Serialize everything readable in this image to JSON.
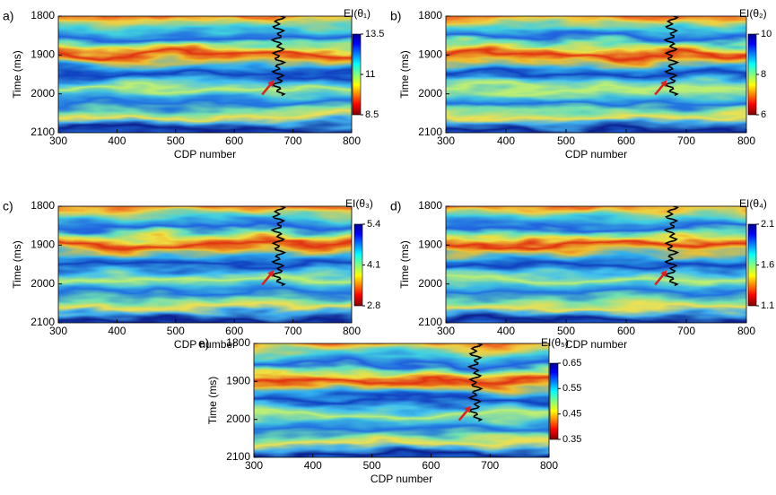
{
  "chart_data": [
    {
      "type": "heatmap",
      "panel_label": "a)",
      "xlabel": "CDP number",
      "ylabel": "Time (ms)",
      "xlim": [
        300,
        800
      ],
      "xticks": [
        300,
        400,
        500,
        600,
        700,
        800
      ],
      "ylim": [
        1800,
        2100
      ],
      "yticks": [
        1800,
        1900,
        2000,
        2100
      ],
      "y_reversed": true,
      "colorbar_label": "EI(θ₁)",
      "clim": [
        8.5,
        13.5
      ],
      "cticks": [
        8.5,
        11,
        13.5
      ],
      "colormap": "jet-reversed"
    },
    {
      "type": "heatmap",
      "panel_label": "b)",
      "xlabel": "CDP number",
      "ylabel": "Time (ms)",
      "xlim": [
        300,
        800
      ],
      "xticks": [
        300,
        400,
        500,
        600,
        700,
        800
      ],
      "ylim": [
        1800,
        2100
      ],
      "yticks": [
        1800,
        1900,
        2000,
        2100
      ],
      "y_reversed": true,
      "colorbar_label": "EI(θ₂)",
      "clim": [
        6,
        10
      ],
      "cticks": [
        6,
        8,
        10
      ],
      "colormap": "jet-reversed"
    },
    {
      "type": "heatmap",
      "panel_label": "c)",
      "xlabel": "CDP number",
      "ylabel": "Time (ms)",
      "xlim": [
        300,
        800
      ],
      "xticks": [
        300,
        400,
        500,
        600,
        700,
        800
      ],
      "ylim": [
        1800,
        2100
      ],
      "yticks": [
        1800,
        1900,
        2000,
        2100
      ],
      "y_reversed": true,
      "colorbar_label": "EI(θ₃)",
      "clim": [
        2.8,
        5.4
      ],
      "cticks": [
        2.8,
        4.1,
        5.4
      ],
      "colormap": "jet-reversed"
    },
    {
      "type": "heatmap",
      "panel_label": "d)",
      "xlabel": "CDP number",
      "ylabel": "Time (ms)",
      "xlim": [
        300,
        800
      ],
      "xticks": [
        300,
        400,
        500,
        600,
        700,
        800
      ],
      "ylim": [
        1800,
        2100
      ],
      "yticks": [
        1800,
        1900,
        2000,
        2100
      ],
      "y_reversed": true,
      "colorbar_label": "EI(θ₄)",
      "clim": [
        1.1,
        2.1
      ],
      "cticks": [
        1.1,
        1.6,
        2.1
      ],
      "colormap": "jet-reversed"
    },
    {
      "type": "heatmap",
      "panel_label": "e)",
      "xlabel": "CDP number",
      "ylabel": "Time (ms)",
      "xlim": [
        300,
        800
      ],
      "xticks": [
        300,
        400,
        500,
        600,
        700,
        800
      ],
      "ylim": [
        1800,
        2100
      ],
      "yticks": [
        1800,
        1900,
        2000,
        2100
      ],
      "y_reversed": true,
      "colorbar_label": "EI(θ₅)",
      "clim": [
        0.35,
        0.65
      ],
      "cticks": [
        0.35,
        0.45,
        0.55,
        0.65
      ],
      "colormap": "jet-reversed"
    }
  ]
}
